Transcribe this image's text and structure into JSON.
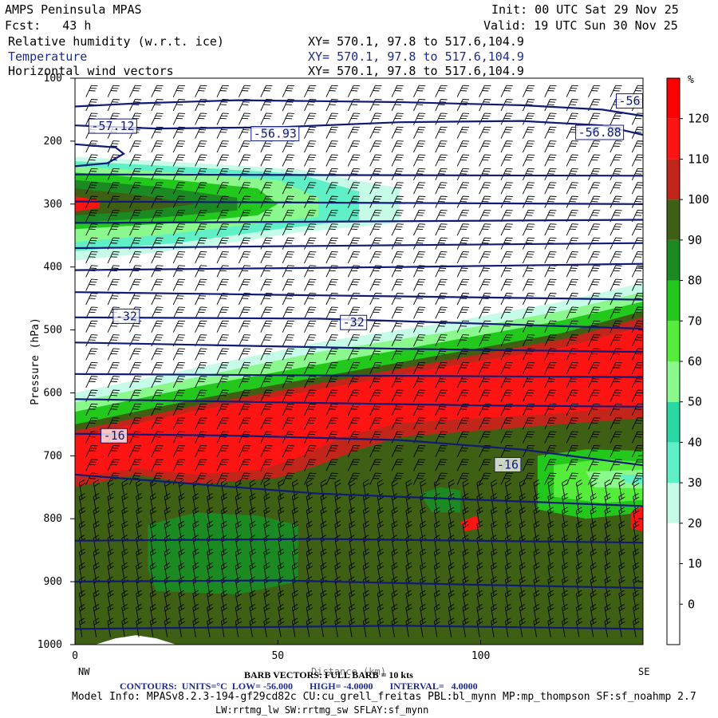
{
  "header": {
    "title": "AMPS Peninsula MPAS",
    "forecast": "Fcst:   43 h",
    "init": "Init: 00 UTC Sat 29 Nov 25",
    "valid": "Valid: 19 UTC Sun 30 Nov 25",
    "fields": [
      {
        "name": "Relative humidity (w.r.t. ice)",
        "xy": "XY= 570.1, 97.8 to 517.6,104.9"
      },
      {
        "name": "Temperature",
        "xy": "XY= 570.1, 97.8 to 517.6,104.9"
      },
      {
        "name": "Horizontal wind vectors",
        "xy": "XY= 570.1, 97.8 to 517.6,104.9"
      }
    ]
  },
  "chart_data": {
    "type": "heatmap",
    "ylabel": "Pressure (hPa)",
    "xlabel": "Distance (km)",
    "x_ticks": [
      0,
      50,
      100
    ],
    "xlim": [
      0,
      140
    ],
    "y_ticks": [
      100,
      200,
      300,
      400,
      500,
      600,
      700,
      800,
      900,
      1000
    ],
    "ylim": [
      100,
      1000
    ],
    "x_end_labels": {
      "left": "NW",
      "right": "SE"
    },
    "colorbar": {
      "unit": "%",
      "levels": [
        0,
        10,
        20,
        30,
        40,
        50,
        60,
        70,
        80,
        90,
        100,
        110,
        120
      ],
      "colors": [
        "#ffffff",
        "#ffffff",
        "#ffffff",
        "#c6fbe8",
        "#5ff0c8",
        "#2ad8a4",
        "#8af88c",
        "#56ec3c",
        "#22c81c",
        "#1c8a22",
        "#3f5f14",
        "#c2261a",
        "#ff1414",
        "#ff0000"
      ]
    },
    "contour_labels": [
      "-57.12",
      "-56.93",
      "-56.88",
      "-56",
      "-32",
      "-32",
      "-16",
      "-16"
    ],
    "footer": {
      "barb": "BARB VECTORS: FULL BARB = 10 kts",
      "contours": "CONTOURS:  UNITS=°C  LOW= -56.000       HIGH= -4.0000       INTERVAL=   4.0000",
      "model_info": "Model Info: MPASv8.2.3-194-gf29cd82c CU:cu_grell_freitas PBL:bl_mynn MP:mp_thompson SF:sf_noahmp 2.7",
      "model_info2": "LW:rrtmg_lw SW:rrtmg_sw SFLAY:sf_mynn"
    }
  }
}
